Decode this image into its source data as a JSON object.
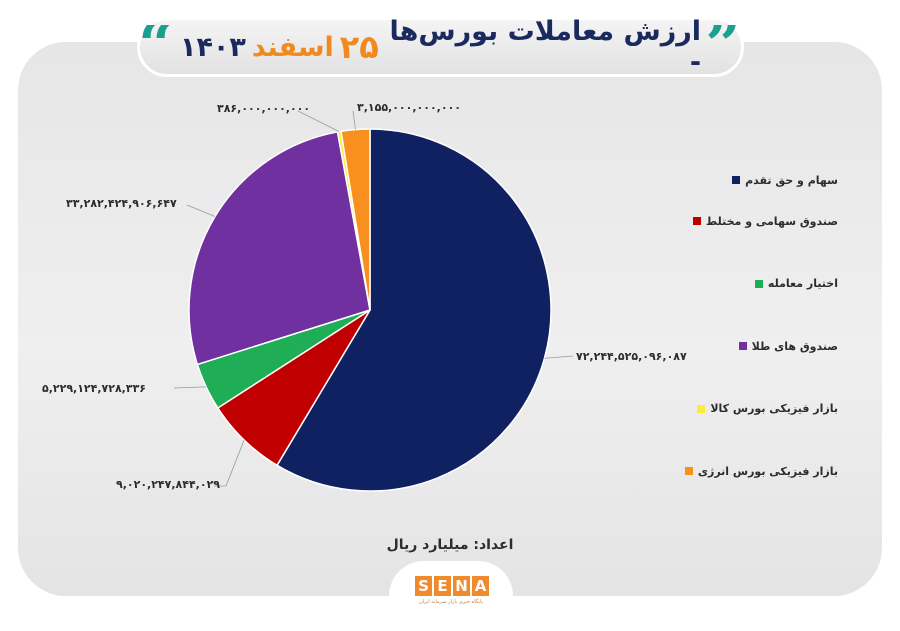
{
  "header": {
    "title_main": "ارزش معاملات بورس‌ها -",
    "title_day": "۲۵",
    "title_month": "اسفند",
    "title_year": "۱۴۰۳",
    "quote_open": "”",
    "quote_close": "“"
  },
  "footer": {
    "unit_label": "اعداد: میلیارد ریال",
    "logo_letters": [
      "S",
      "E",
      "N",
      "A"
    ],
    "logo_subtitle": "پایگاه خبری بازار سرمایه ایران"
  },
  "chart_data": {
    "type": "pie",
    "title": "ارزش معاملات بورس‌ها - ۲۵ اسفند ۱۴۰۳",
    "unit": "میلیارد ریال",
    "legend_position": "right",
    "categories": [
      "سهام و حق تقدم",
      "صندوق سهامی و مختلط",
      "اختیار معامله",
      "صندوق های طلا",
      "بازار فیزیکی بورس کالا",
      "بازار فیزیکی بورس انرژی"
    ],
    "values": [
      72244525096087,
      9020247844029,
      5229124728336,
      33282424906647,
      386000000000,
      3155000000000
    ],
    "value_labels": [
      "۷۲,۲۴۴,۵۲۵,۰۹۶,۰۸۷",
      "۹,۰۲۰,۲۴۷,۸۴۴,۰۲۹",
      "۵,۲۲۹,۱۲۴,۷۲۸,۳۳۶",
      "۳۳,۲۸۲,۴۲۴,۹۰۶,۶۴۷",
      "۳۸۶,۰۰۰,۰۰۰,۰۰۰",
      "۳,۱۵۵,۰۰۰,۰۰۰,۰۰۰"
    ],
    "colors": [
      "#0f2160",
      "#c00000",
      "#1fae55",
      "#7030a0",
      "#ffeb3b",
      "#f7901e"
    ],
    "start_angle": "12 o'clock, clockwise"
  }
}
